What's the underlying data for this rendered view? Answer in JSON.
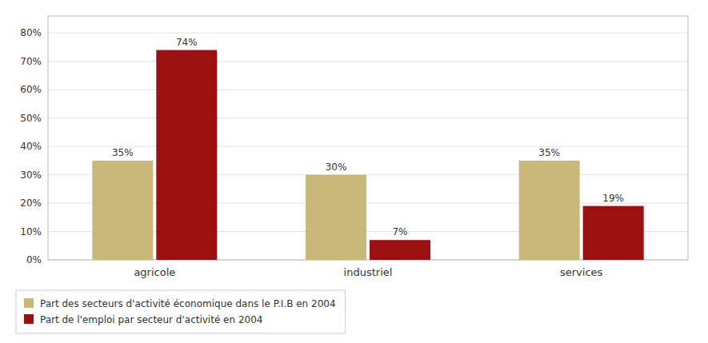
{
  "chart_data": {
    "type": "bar",
    "categories": [
      "agricole",
      "industriel",
      "services"
    ],
    "series": [
      {
        "name": "Part des secteurs d'activité économique dans le P.I.B en 2004",
        "color": "#C8B87A",
        "values": [
          35,
          30,
          35
        ],
        "value_labels": [
          "35%",
          "30%",
          "35%"
        ]
      },
      {
        "name": "Part de l'emploi par secteur d'activité en 2004",
        "color": "#9B1010",
        "values": [
          74,
          7,
          19
        ],
        "value_labels": [
          "74%",
          "7%",
          "19%"
        ]
      }
    ],
    "ylim": [
      0,
      86
    ],
    "yticks": [
      {
        "value": 0,
        "label": "0%"
      },
      {
        "value": 10,
        "label": "10%"
      },
      {
        "value": 20,
        "label": "20%"
      },
      {
        "value": 30,
        "label": "30%"
      },
      {
        "value": 40,
        "label": "40%"
      },
      {
        "value": 50,
        "label": "50%"
      },
      {
        "value": 60,
        "label": "60%"
      },
      {
        "value": 70,
        "label": "70%"
      },
      {
        "value": 80,
        "label": "80%"
      }
    ],
    "grid": true,
    "data_labels": true,
    "legend": "lower left"
  }
}
